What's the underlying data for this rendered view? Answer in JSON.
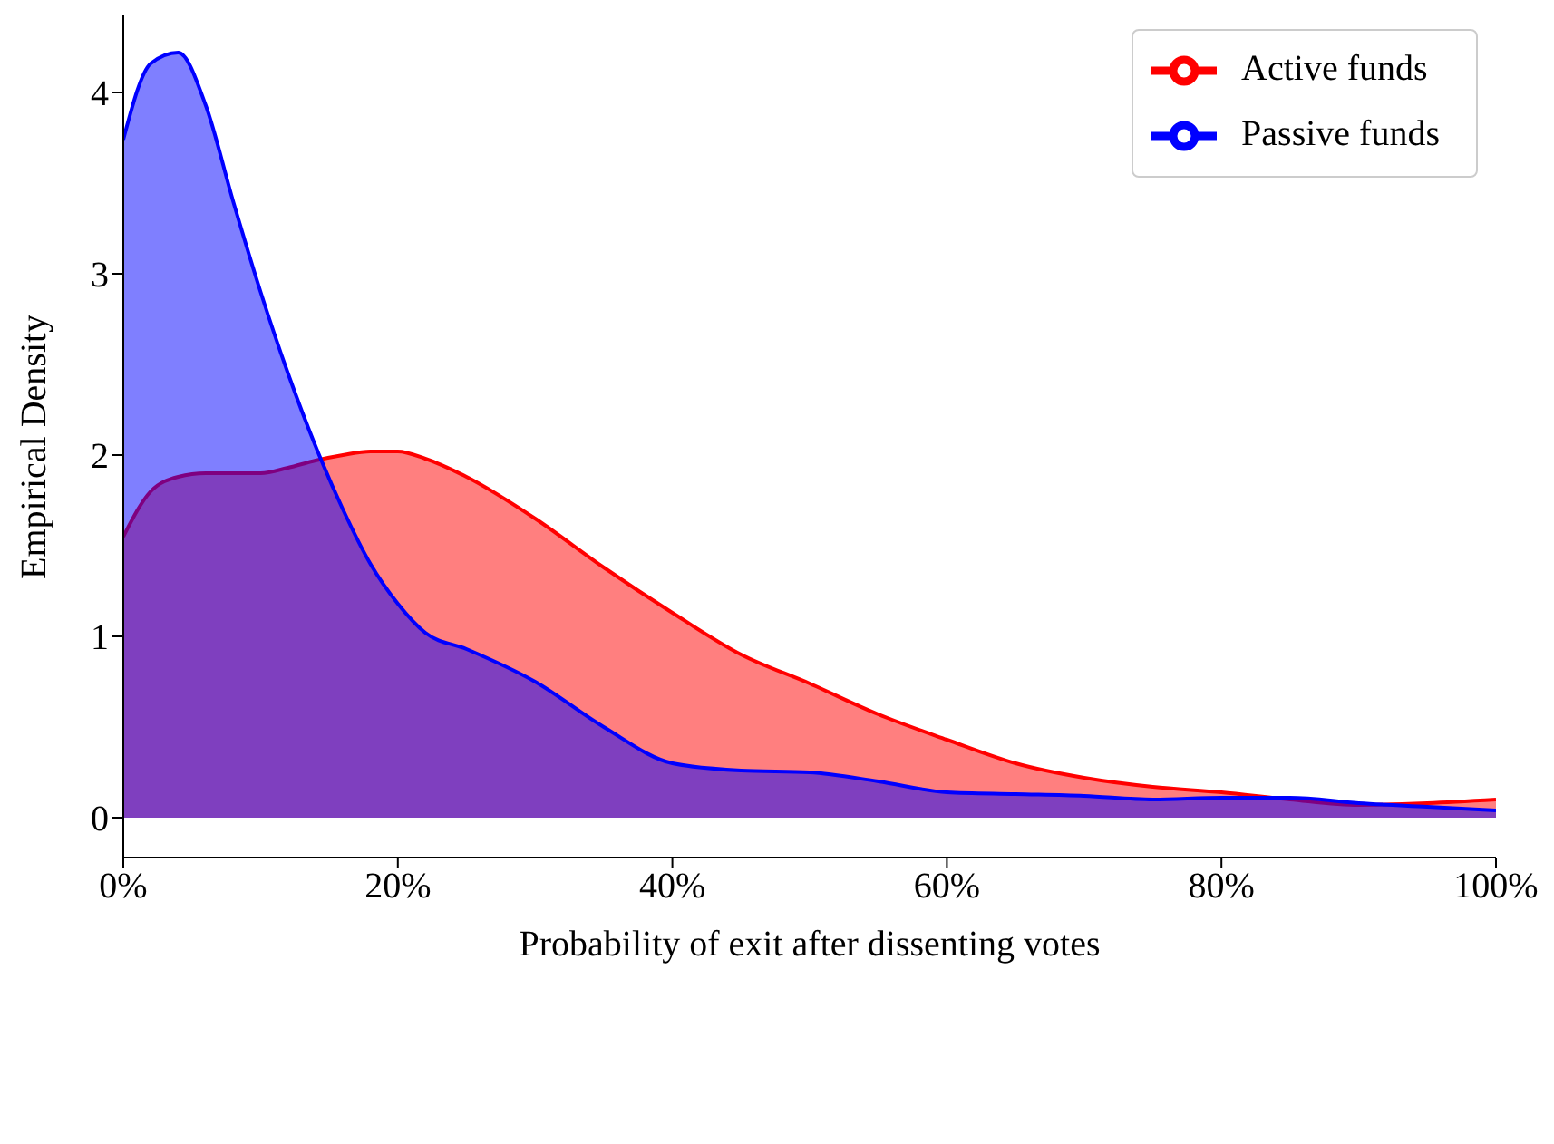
{
  "chart_data": {
    "type": "area",
    "xlabel": "Probability of exit after dissenting votes",
    "ylabel": "Empirical Density",
    "x": [
      0,
      2,
      4,
      6,
      8,
      10,
      12,
      14,
      16,
      18,
      20,
      22,
      25,
      30,
      35,
      40,
      45,
      50,
      55,
      60,
      65,
      70,
      75,
      80,
      85,
      90,
      95,
      100
    ],
    "series": [
      {
        "name": "Active funds",
        "color": "#ff0000",
        "values": [
          1.55,
          1.8,
          1.88,
          1.9,
          1.9,
          1.9,
          1.93,
          1.97,
          2.0,
          2.02,
          2.02,
          1.98,
          1.88,
          1.65,
          1.38,
          1.13,
          0.9,
          0.74,
          0.57,
          0.43,
          0.3,
          0.22,
          0.17,
          0.14,
          0.1,
          0.07,
          0.08,
          0.1
        ]
      },
      {
        "name": "Passive funds",
        "color": "#0000ff",
        "values": [
          3.74,
          4.16,
          4.22,
          3.93,
          3.4,
          2.9,
          2.45,
          2.05,
          1.7,
          1.4,
          1.18,
          1.02,
          0.93,
          0.75,
          0.5,
          0.3,
          0.26,
          0.25,
          0.2,
          0.14,
          0.13,
          0.12,
          0.1,
          0.11,
          0.11,
          0.08,
          0.06,
          0.04
        ]
      }
    ],
    "xlim": [
      0,
      100
    ],
    "xticks": [
      {
        "value": 0,
        "label": "0%"
      },
      {
        "value": 20,
        "label": "20%"
      },
      {
        "value": 40,
        "label": "40%"
      },
      {
        "value": 60,
        "label": "60%"
      },
      {
        "value": 80,
        "label": "80%"
      },
      {
        "value": 100,
        "label": "100%"
      }
    ],
    "ylim": [
      -0.22,
      4.45
    ],
    "yticks": [
      0,
      1,
      2,
      3,
      4
    ],
    "grid": false,
    "legend": "top right"
  }
}
